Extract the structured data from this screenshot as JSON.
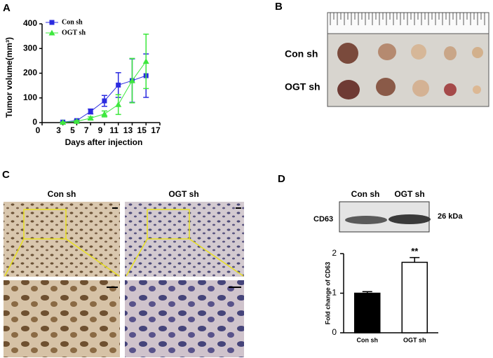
{
  "panel_labels": [
    "A",
    "B",
    "C",
    "D"
  ],
  "photo_b": {
    "rows": [
      "Con sh",
      "OGT sh"
    ]
  },
  "photo_c": {
    "columns": [
      "Con sh",
      "OGT sh"
    ]
  },
  "blot_d": {
    "lanes": [
      "Con sh",
      "OGT sh"
    ],
    "protein": "CD63",
    "size": "26 kDa"
  },
  "chart_data": [
    {
      "type": "line",
      "xlabel": "Days after injection",
      "ylabel": "Tumor volume(mm³)",
      "x": [
        3,
        5,
        7,
        9,
        11,
        13,
        15
      ],
      "series": [
        {
          "name": "Con sh",
          "color": "#2b2be0",
          "marker": "square",
          "values": [
            2,
            8,
            45,
            88,
            152,
            170,
            190
          ],
          "errors": [
            2,
            3,
            10,
            22,
            50,
            88,
            88
          ]
        },
        {
          "name": "OGT sh",
          "color": "#3ee83e",
          "marker": "triangle",
          "values": [
            1,
            5,
            18,
            35,
            73,
            170,
            248
          ],
          "errors": [
            1,
            3,
            5,
            12,
            40,
            90,
            110
          ]
        }
      ],
      "xlim": [
        0,
        17
      ],
      "xticks": [
        0,
        3,
        5,
        7,
        9,
        11,
        13,
        15,
        17
      ],
      "ylim": [
        0,
        400
      ],
      "yticks": [
        0,
        100,
        200,
        300,
        400
      ],
      "legend": "upper-left"
    },
    {
      "type": "bar",
      "ylabel": "Fold change of CD63",
      "categories": [
        "Con sh",
        "OGT sh"
      ],
      "values": [
        1.0,
        1.78
      ],
      "errors": [
        0.04,
        0.12
      ],
      "colors": [
        "#000000",
        "#ffffff"
      ],
      "annotation": "**",
      "ylim": [
        0,
        2
      ],
      "yticks": [
        0,
        1,
        2
      ]
    }
  ]
}
